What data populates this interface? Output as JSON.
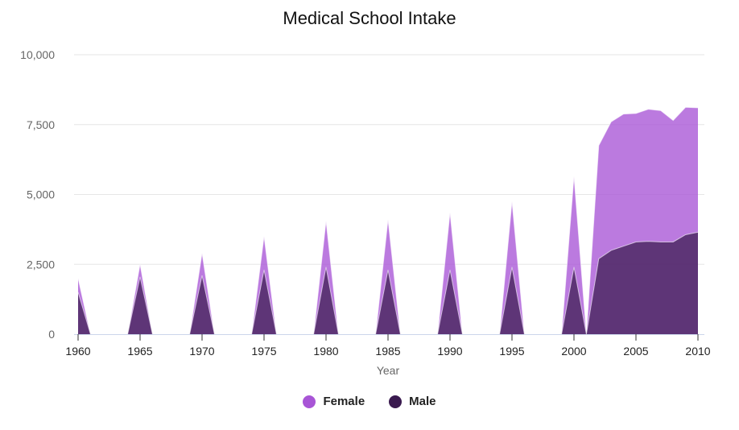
{
  "chart_data": {
    "type": "area",
    "title": "Medical School Intake",
    "xlabel": "Year",
    "ylabel": "",
    "ylim": [
      0,
      10000
    ],
    "xlim": [
      1960,
      2010
    ],
    "y_ticks": [
      0,
      2500,
      5000,
      7500,
      10000
    ],
    "y_tick_labels": [
      "0",
      "2,500",
      "5,000",
      "7,500",
      "10,000"
    ],
    "x_ticks": [
      1960,
      1965,
      1970,
      1975,
      1980,
      1985,
      1990,
      1995,
      2000,
      2005,
      2010
    ],
    "x_tick_labels": [
      "1960",
      "1965",
      "1970",
      "1975",
      "1980",
      "1985",
      "1990",
      "1995",
      "2000",
      "2005",
      "2010"
    ],
    "stacking": "overlapping",
    "series": [
      {
        "name": "Female",
        "color": "#a855d6",
        "points": [
          [
            1960,
            2000
          ],
          [
            1961,
            0
          ],
          [
            1964,
            0
          ],
          [
            1965,
            2500
          ],
          [
            1966,
            0
          ],
          [
            1969,
            0
          ],
          [
            1970,
            2900
          ],
          [
            1971,
            0
          ],
          [
            1974,
            0
          ],
          [
            1975,
            3500
          ],
          [
            1976,
            0
          ],
          [
            1979,
            0
          ],
          [
            1980,
            4050
          ],
          [
            1981,
            0
          ],
          [
            1984,
            0
          ],
          [
            1985,
            4100
          ],
          [
            1986,
            0
          ],
          [
            1989,
            0
          ],
          [
            1990,
            4350
          ],
          [
            1991,
            0
          ],
          [
            1994,
            0
          ],
          [
            1995,
            4750
          ],
          [
            1996,
            0
          ],
          [
            1999,
            0
          ],
          [
            2000,
            5650
          ],
          [
            2001,
            0
          ],
          [
            2002,
            6750
          ],
          [
            2003,
            7600
          ],
          [
            2004,
            7880
          ],
          [
            2005,
            7900
          ],
          [
            2006,
            8050
          ],
          [
            2007,
            8000
          ],
          [
            2008,
            7650
          ],
          [
            2009,
            8120
          ],
          [
            2010,
            8100
          ]
        ]
      },
      {
        "name": "Male",
        "color": "#3a1a4f",
        "points": [
          [
            1960,
            1500
          ],
          [
            1961,
            0
          ],
          [
            1964,
            0
          ],
          [
            1965,
            2050
          ],
          [
            1966,
            0
          ],
          [
            1969,
            0
          ],
          [
            1970,
            2100
          ],
          [
            1971,
            0
          ],
          [
            1974,
            0
          ],
          [
            1975,
            2300
          ],
          [
            1976,
            0
          ],
          [
            1979,
            0
          ],
          [
            1980,
            2400
          ],
          [
            1981,
            0
          ],
          [
            1984,
            0
          ],
          [
            1985,
            2300
          ],
          [
            1986,
            0
          ],
          [
            1989,
            0
          ],
          [
            1990,
            2300
          ],
          [
            1991,
            0
          ],
          [
            1994,
            0
          ],
          [
            1995,
            2400
          ],
          [
            1996,
            0
          ],
          [
            1999,
            0
          ],
          [
            2000,
            2400
          ],
          [
            2001,
            0
          ],
          [
            2002,
            2700
          ],
          [
            2003,
            3000
          ],
          [
            2004,
            3150
          ],
          [
            2005,
            3300
          ],
          [
            2006,
            3320
          ],
          [
            2007,
            3300
          ],
          [
            2008,
            3300
          ],
          [
            2009,
            3560
          ],
          [
            2010,
            3650
          ]
        ]
      }
    ],
    "legend": [
      "Female",
      "Male"
    ],
    "legend_position": "bottom-center",
    "grid": true
  }
}
